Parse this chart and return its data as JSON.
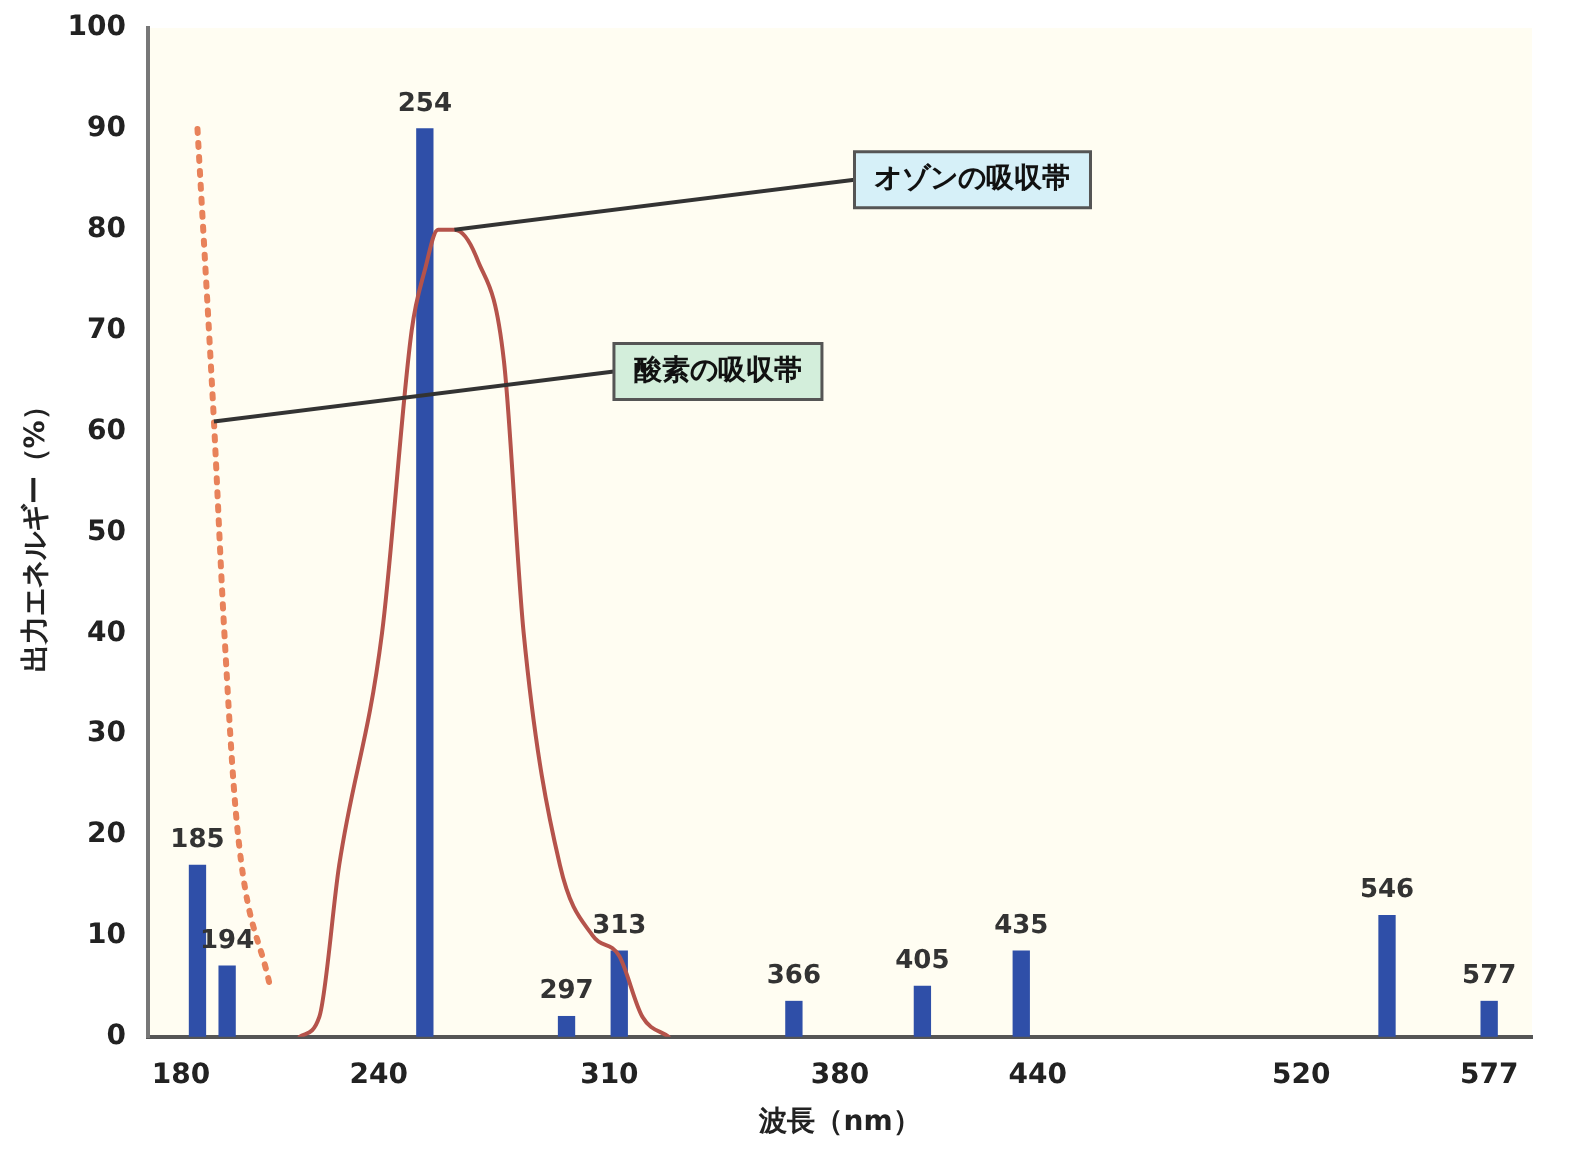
{
  "chart_data": {
    "type": "bar",
    "xlabel": "波長（nm）",
    "ylabel": "出力エネルギー（%）",
    "xlim": [
      170,
      590
    ],
    "xticks": [
      180,
      240,
      310,
      380,
      440,
      520,
      577
    ],
    "ylim": [
      0,
      100
    ],
    "yticks": [
      0,
      10,
      20,
      30,
      40,
      50,
      60,
      70,
      80,
      90,
      100
    ],
    "grid": false,
    "legend": false,
    "marker": "none",
    "series": [
      {
        "color": "#2f4fa8",
        "x": [
          185,
          194,
          254,
          297,
          313,
          366,
          405,
          435,
          546,
          577
        ],
        "values": [
          17,
          7,
          90,
          2,
          8.5,
          3.5,
          5,
          8.5,
          12,
          3.5
        ]
      },
      {
        "type": "line",
        "line_style": "solid",
        "color": "#b5534b",
        "x": [
          216,
          222,
          228,
          241,
          250,
          254,
          258,
          263,
          270,
          278,
          284,
          295,
          305,
          313,
          320,
          328
        ],
        "values": [
          0,
          2,
          17,
          40,
          70,
          76,
          80,
          80,
          77,
          67,
          40,
          17,
          10,
          8,
          2,
          0
        ]
      },
      {
        "type": "line",
        "line_style": "dotted",
        "color": "#e8825a",
        "x": [
          185,
          189,
          190,
          193,
          197,
          207
        ],
        "values": [
          90,
          67,
          61,
          41,
          21,
          5
        ]
      }
    ],
    "annotations": [
      {
        "text": "オゾンの吸収帯",
        "x": 263,
        "y": 80
      },
      {
        "text": "酸素の吸収帯",
        "x": 190,
        "y": 61
      },
      {
        "text": "185",
        "x": 185,
        "y": 17
      },
      {
        "text": "194",
        "x": 194,
        "y": 7
      },
      {
        "text": "254",
        "x": 254,
        "y": 90
      },
      {
        "text": "297",
        "x": 297,
        "y": 2
      },
      {
        "text": "313",
        "x": 313,
        "y": 8.5
      },
      {
        "text": "366",
        "x": 366,
        "y": 3.5
      },
      {
        "text": "405",
        "x": 405,
        "y": 5
      },
      {
        "text": "435",
        "x": 435,
        "y": 8.5
      },
      {
        "text": "546",
        "x": 546,
        "y": 12
      },
      {
        "text": "577",
        "x": 577,
        "y": 3.5
      }
    ]
  }
}
